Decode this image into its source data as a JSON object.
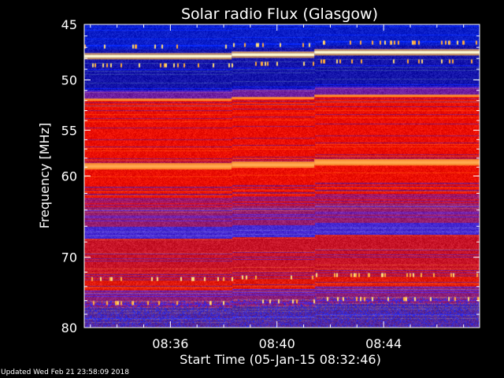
{
  "chart_data": {
    "type": "heatmap",
    "title": "Solar radio Flux (Glasgow)",
    "xlabel": "Start Time (05-Jan-15 08:32:46)",
    "ylabel": "Frequency [MHz]",
    "x_ticks": [
      "08:36",
      "08:40",
      "08:44"
    ],
    "x_tick_minutes": [
      36,
      40,
      44
    ],
    "xlim_minutes": [
      32.77,
      47.6
    ],
    "y_ticks": [
      45,
      50,
      55,
      60,
      70,
      80
    ],
    "ylim": [
      45,
      80
    ],
    "y_scale": "log",
    "segment_boundaries_minutes": [
      38.3,
      41.4
    ],
    "bright_bands_mhz": [
      47.8,
      58.9
    ],
    "colormap": [
      "#0000a0",
      "#2020ff",
      "#8040c0",
      "#ff0000",
      "#ff8000",
      "#ffffc0"
    ]
  },
  "footer": "Updated Wed Feb 21 23:58:09 2018"
}
